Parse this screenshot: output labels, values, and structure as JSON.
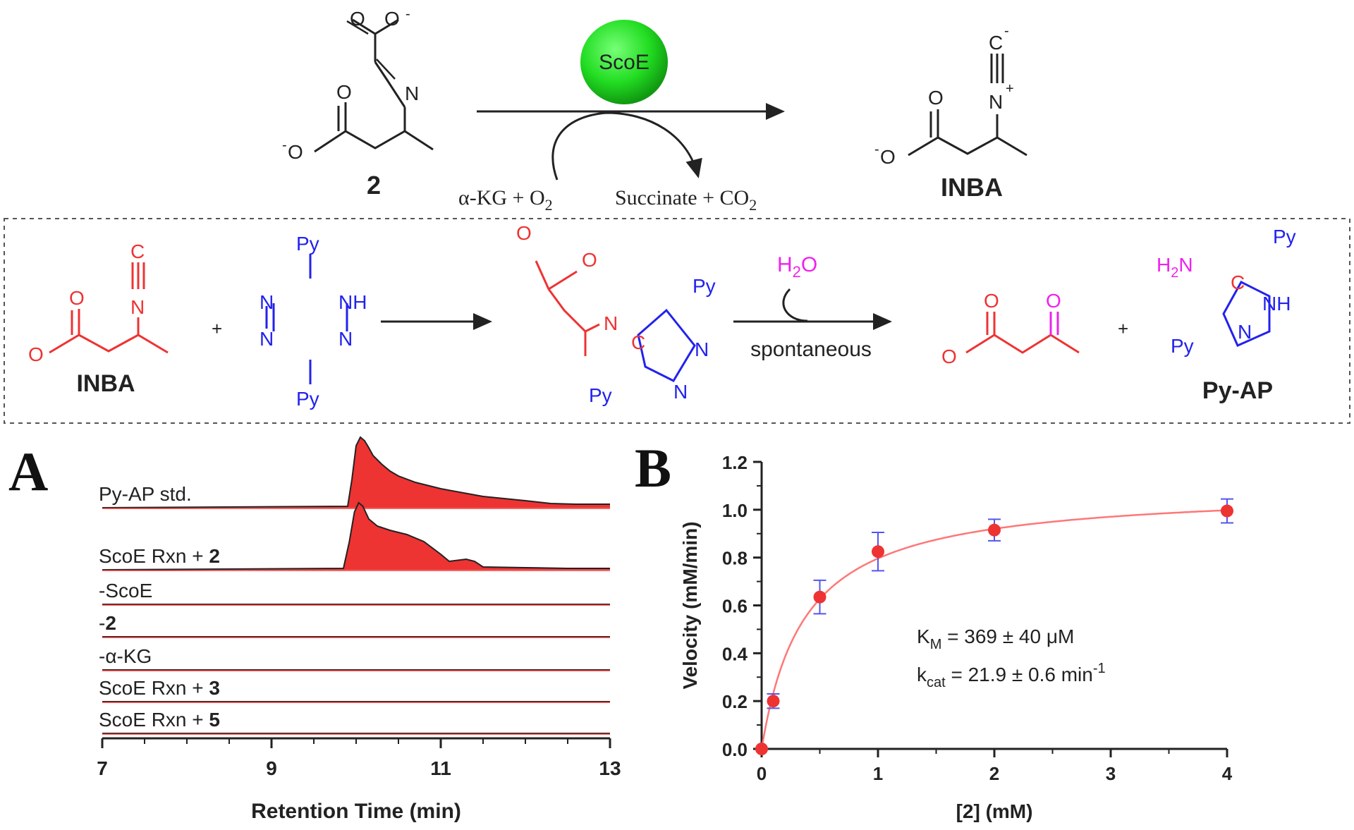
{
  "scheme": {
    "enzyme": "ScoE",
    "substrate_label": "2",
    "cosubstrates": "α-KG + O",
    "cosubstrate_sub": "2",
    "coproducts": "Succinate + CO",
    "coproduct_sub": "2",
    "product_label": "INBA"
  },
  "assay": {
    "reactant_label": "INBA",
    "cofactor": "H",
    "cofactor_sub": "2",
    "cofactor_tail": "O",
    "condition": "spontaneous",
    "product_label": "Py-AP",
    "plus": "+",
    "ring_substituent": "Py",
    "amine": "H",
    "amine_sub": "2",
    "amine_tail": "N"
  },
  "colors": {
    "red": "#ee3333",
    "blue": "#2222ee",
    "magenta": "#ee22ee",
    "enzyme_green": "#22dd22",
    "chrom_fill": "#ee3333",
    "errorbar": "#5555ee"
  },
  "panelA": {
    "panel_letter": "A",
    "traces": [
      {
        "label": "Py-AP std.",
        "bold_part": "",
        "peak": true
      },
      {
        "label": "ScoE Rxn + ",
        "bold_part": "2",
        "peak": true
      },
      {
        "label": "-ScoE",
        "bold_part": "",
        "peak": false
      },
      {
        "label": "-",
        "bold_part": "2",
        "peak": false
      },
      {
        "label": "-α-KG",
        "bold_part": "",
        "peak": false
      },
      {
        "label": "ScoE Rxn + ",
        "bold_part": "3",
        "peak": false
      },
      {
        "label": "ScoE Rxn + ",
        "bold_part": "5",
        "peak": false
      }
    ]
  },
  "panelB": {
    "panel_letter": "B",
    "annotation_km": "K",
    "annotation_km_sub": "M",
    "annotation_km_value": " = 369 ± 40 μM",
    "annotation_kcat": "k",
    "annotation_kcat_sub": "cat",
    "annotation_kcat_value": " = 21.9 ± 0.6 min",
    "annotation_kcat_sup": "-1"
  },
  "chart_data": [
    {
      "type": "area",
      "xlabel": "Retention Time (min)",
      "ylabel": "",
      "xlim": [
        7,
        13
      ],
      "xticks": [
        7,
        9,
        11,
        13
      ],
      "grid": false,
      "series": [
        {
          "name": "Py-AP std.",
          "x": [
            7,
            9.9,
            9.95,
            10.0,
            10.05,
            10.1,
            10.15,
            10.2,
            10.3,
            10.4,
            10.5,
            10.7,
            11.0,
            11.5,
            12.0,
            12.3,
            12.6,
            13.0
          ],
          "values": [
            0,
            0.02,
            0.4,
            0.88,
            1.0,
            0.95,
            0.85,
            0.74,
            0.62,
            0.52,
            0.45,
            0.36,
            0.27,
            0.16,
            0.1,
            0.06,
            0.05,
            0.05
          ]
        },
        {
          "name": "ScoE Rxn + 2",
          "x": [
            7,
            9.85,
            9.92,
            9.98,
            10.03,
            10.08,
            10.15,
            10.25,
            10.4,
            10.6,
            10.8,
            11.0,
            11.1,
            11.3,
            11.4,
            11.5,
            12.0,
            12.5,
            13.0
          ],
          "values": [
            0,
            0.02,
            0.4,
            0.82,
            0.95,
            0.9,
            0.72,
            0.62,
            0.56,
            0.5,
            0.4,
            0.22,
            0.12,
            0.15,
            0.12,
            0.04,
            0.03,
            0.02,
            0.02
          ]
        },
        {
          "name": "-ScoE",
          "x": [
            7,
            13
          ],
          "values": [
            0,
            0
          ]
        },
        {
          "name": "-2",
          "x": [
            7,
            13
          ],
          "values": [
            0,
            0
          ]
        },
        {
          "name": "-α-KG",
          "x": [
            7,
            13
          ],
          "values": [
            0,
            0
          ]
        },
        {
          "name": "ScoE Rxn + 3",
          "x": [
            7,
            13
          ],
          "values": [
            0,
            0
          ]
        },
        {
          "name": "ScoE Rxn + 5",
          "x": [
            7,
            13
          ],
          "values": [
            0,
            0
          ]
        }
      ]
    },
    {
      "type": "scatter",
      "xlabel": "[2] (mM)",
      "ylabel": "Velocity (mM/min)",
      "xlim": [
        0,
        4
      ],
      "ylim": [
        0,
        1.2
      ],
      "xticks": [
        0,
        1,
        2,
        3,
        4
      ],
      "yticks": [
        0.0,
        0.2,
        0.4,
        0.6,
        0.8,
        1.0,
        1.2
      ],
      "grid": false,
      "series": [
        {
          "name": "",
          "x": [
            0,
            0.1,
            0.5,
            1.0,
            2.0,
            4.0
          ],
          "values": [
            0.0,
            0.2,
            0.635,
            0.825,
            0.915,
            0.995
          ],
          "errors": [
            0,
            0.03,
            0.07,
            0.08,
            0.045,
            0.05
          ]
        }
      ],
      "fit": {
        "model": "michaelis-menten",
        "vmax": 1.09,
        "km": 0.369
      }
    }
  ]
}
